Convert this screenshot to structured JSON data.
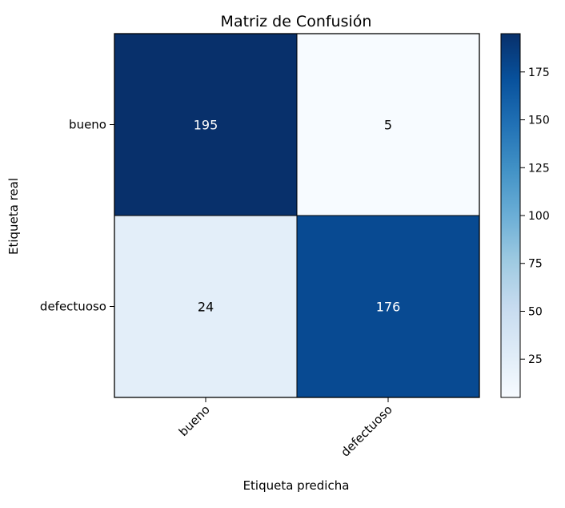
{
  "chart_data": {
    "type": "heatmap",
    "title": "Matriz de Confusión",
    "xlabel": "Etiqueta predicha",
    "ylabel": "Etiqueta real",
    "x_categories": [
      "bueno",
      "defectuoso"
    ],
    "y_categories": [
      "bueno",
      "defectuoso"
    ],
    "values": [
      [
        195,
        5
      ],
      [
        24,
        176
      ]
    ],
    "cell_labels": [
      [
        "195",
        "5"
      ],
      [
        "24",
        "176"
      ]
    ],
    "colormap": "Blues",
    "colorbar": {
      "range": [
        5,
        195
      ],
      "ticks": [
        25,
        50,
        75,
        100,
        125,
        150,
        175
      ],
      "tick_labels": [
        "25",
        "50",
        "75",
        "100",
        "125",
        "150",
        "175"
      ]
    },
    "grid": false
  }
}
